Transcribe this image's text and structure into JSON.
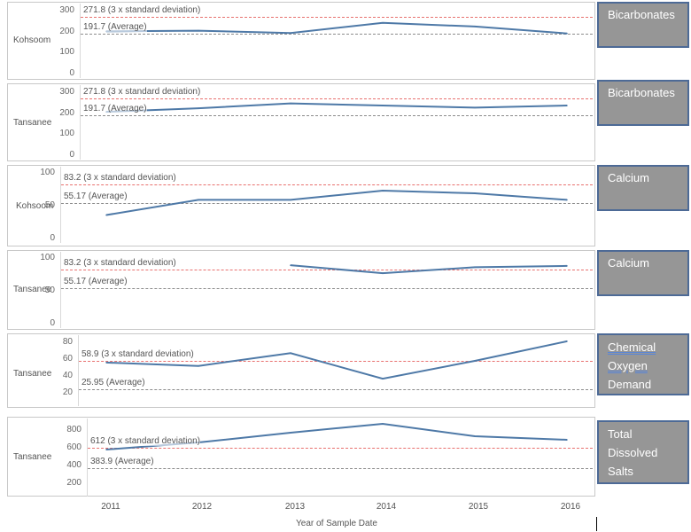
{
  "colors": {
    "line": "#4e79a7",
    "std": "#e8716f",
    "avg": "#8c8c8c",
    "legend_bg": "#969696",
    "legend_border": "#4d6a96"
  },
  "x_axis": {
    "title": "Year of Sample Date",
    "ticks": [
      "2011",
      "2012",
      "2013",
      "2014",
      "2015",
      "2016"
    ]
  },
  "chart_data": [
    {
      "type": "line",
      "row_label": "Kohsoom",
      "legend": "Bicarbonates",
      "x": [
        2011,
        2012,
        2013,
        2014,
        2015,
        2016
      ],
      "values": [
        205,
        208,
        197,
        245,
        228,
        195
      ],
      "ylim": [
        0,
        320
      ],
      "yticks": [
        "300",
        "200",
        "100",
        "0"
      ],
      "std": {
        "value": 271.8,
        "label": "271.8 (3 x standard deviation)"
      },
      "avg": {
        "value": 191.7,
        "label": "191.7 (Average)"
      }
    },
    {
      "type": "line",
      "row_label": "Tansanee",
      "legend": "Bicarbonates",
      "x": [
        2011,
        2012,
        2013,
        2014,
        2015,
        2016
      ],
      "values": [
        210,
        227,
        250,
        240,
        230,
        240
      ],
      "ylim": [
        0,
        320
      ],
      "yticks": [
        "300",
        "200",
        "100",
        "0"
      ],
      "std": {
        "value": 271.8,
        "label": "271.8 (3 x standard deviation)"
      },
      "avg": {
        "value": 191.7,
        "label": "191.7 (Average)"
      }
    },
    {
      "type": "line",
      "row_label": "Kohsoom",
      "legend": "Calcium",
      "x": [
        2011,
        2012,
        2013,
        2014,
        2015,
        2016
      ],
      "values": [
        37,
        60,
        60,
        74,
        70,
        60
      ],
      "ylim": [
        0,
        105
      ],
      "yticks": [
        "100",
        "50",
        "0"
      ],
      "std": {
        "value": 83.2,
        "label": "83.2 (3 x standard deviation)"
      },
      "avg": {
        "value": 55.17,
        "label": "55.17 (Average)"
      }
    },
    {
      "type": "line",
      "row_label": "Tansanee",
      "legend": "Calcium",
      "x": [
        2013,
        2014,
        2015,
        2016
      ],
      "values": [
        90,
        78,
        87,
        89
      ],
      "ylim": [
        0,
        105
      ],
      "yticks": [
        "100",
        "50",
        "0"
      ],
      "std": {
        "value": 83.2,
        "label": "83.2 (3 x standard deviation)"
      },
      "avg": {
        "value": 55.17,
        "label": "55.17 (Average)"
      }
    },
    {
      "type": "line",
      "row_label": "Tansanee",
      "legend": "Chemical Oxygen Demand",
      "legend_lines": [
        "Chemical",
        "Oxygen",
        "Demand"
      ],
      "x": [
        2011,
        2012,
        2013,
        2014,
        2015,
        2016
      ],
      "values": [
        57,
        53,
        68,
        38,
        59,
        82
      ],
      "ylim": [
        10,
        85
      ],
      "yticks": [
        "80",
        "60",
        "40",
        "20"
      ],
      "std": {
        "value": 58.9,
        "label": "58.9 (3 x standard deviation)"
      },
      "avg": {
        "value": 25.95,
        "label": "25.95 (Average)"
      }
    },
    {
      "type": "line",
      "row_label": "Tansanee",
      "legend": "Total Dissolved Salts",
      "legend_lines": [
        "Total",
        "Dissolved",
        "Salts"
      ],
      "x": [
        2011,
        2012,
        2013,
        2014,
        2015,
        2016
      ],
      "values": [
        590,
        670,
        780,
        880,
        740,
        700
      ],
      "ylim": [
        100,
        900
      ],
      "yticks": [
        "800",
        "600",
        "400",
        "200"
      ],
      "std": {
        "value": 612,
        "label": "612 (3 x standard deviation)"
      },
      "avg": {
        "value": 383.9,
        "label": "383.9 (Average)"
      }
    }
  ]
}
